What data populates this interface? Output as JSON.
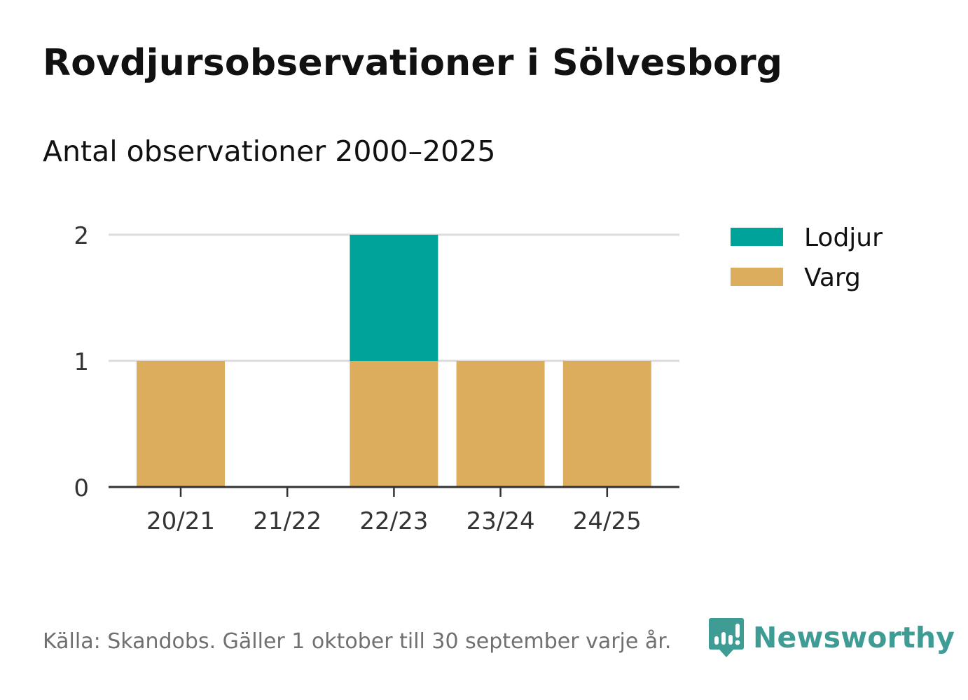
{
  "chart_data": {
    "type": "bar",
    "stacked": true,
    "title": "Rovdjursobservationer i Sölvesborg",
    "subtitle": "Antal observationer 2000–2025",
    "categories": [
      "20/21",
      "21/22",
      "22/23",
      "23/24",
      "24/25"
    ],
    "series": [
      {
        "name": "Varg",
        "color": "#dbad5d",
        "values": [
          1,
          0,
          1,
          1,
          1
        ]
      },
      {
        "name": "Lodjur",
        "color": "#00a39a",
        "values": [
          0,
          0,
          1,
          0,
          0
        ]
      }
    ],
    "legend_order": [
      "Lodjur",
      "Varg"
    ],
    "ylim": [
      0,
      2
    ],
    "yticks": [
      0,
      1,
      2
    ],
    "xlabel": "",
    "ylabel": "",
    "grid": true,
    "legend_position": "right"
  },
  "footer": {
    "source": "Källa: Skandobs. Gäller 1 oktober till 30 september varje år.",
    "brand": "Newsworthy"
  },
  "colors": {
    "grid": "#dcdcdc",
    "axis": "#333333",
    "tick_text": "#333333",
    "brand": "#3e9c95"
  }
}
